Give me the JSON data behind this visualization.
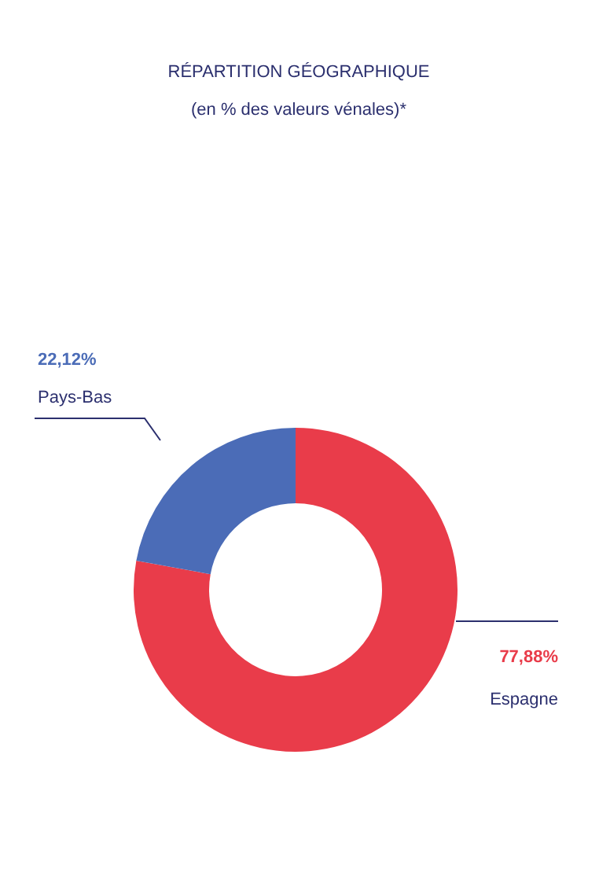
{
  "chart_data": {
    "type": "donut",
    "title": "RÉPARTITION GÉOGRAPHIQUE",
    "subtitle": "(en % des valeurs vénales)*",
    "categories": [
      "Espagne",
      "Pays-Bas"
    ],
    "values": [
      77.88,
      22.12
    ],
    "colors": [
      "#e93c4a",
      "#4b6cb7"
    ],
    "value_labels": [
      "77,88%",
      "22,12%"
    ]
  }
}
